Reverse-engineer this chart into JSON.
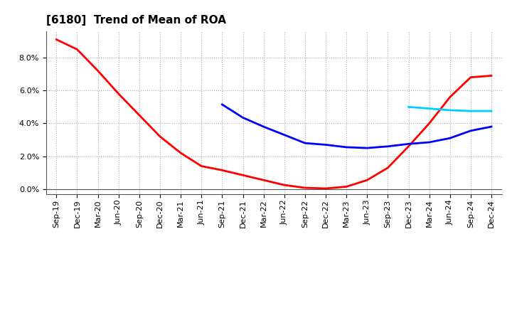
{
  "title": "[6180]  Trend of Mean of ROA",
  "x_labels": [
    "Sep-19",
    "Dec-19",
    "Mar-20",
    "Jun-20",
    "Sep-20",
    "Dec-20",
    "Mar-21",
    "Jun-21",
    "Sep-21",
    "Dec-21",
    "Mar-22",
    "Jun-22",
    "Sep-22",
    "Dec-22",
    "Mar-23",
    "Jun-23",
    "Sep-23",
    "Dec-23",
    "Mar-24",
    "Jun-24",
    "Sep-24",
    "Dec-24"
  ],
  "series_3yr": {
    "color": "#FF0000",
    "data_x": [
      0,
      1,
      2,
      3,
      4,
      5,
      6,
      7,
      8,
      9,
      10,
      11,
      12,
      13,
      14,
      15,
      16,
      17,
      18,
      19,
      20,
      21
    ],
    "data_y": [
      9.1,
      8.5,
      7.2,
      5.8,
      4.5,
      3.2,
      2.2,
      1.4,
      1.15,
      0.85,
      0.55,
      0.25,
      0.08,
      0.04,
      0.15,
      0.55,
      1.3,
      2.6,
      4.0,
      5.6,
      6.8,
      6.9
    ]
  },
  "series_5yr": {
    "color": "#0000FF",
    "data_x": [
      8,
      9,
      10,
      11,
      12,
      13,
      14,
      15,
      16,
      17,
      18,
      19,
      20,
      21
    ],
    "data_y": [
      5.15,
      4.35,
      3.8,
      3.3,
      2.8,
      2.7,
      2.55,
      2.5,
      2.6,
      2.75,
      2.85,
      3.1,
      3.55,
      3.8
    ]
  },
  "series_7yr": {
    "color": "#00CCFF",
    "data_x": [
      17,
      18,
      19,
      20,
      21
    ],
    "data_y": [
      5.0,
      4.9,
      4.8,
      4.75,
      4.75
    ]
  },
  "series_10yr": {
    "color": "#008000",
    "data_x": [],
    "data_y": []
  },
  "ylim": [
    -0.3,
    9.6
  ],
  "yticks": [
    0.0,
    2.0,
    4.0,
    6.0,
    8.0
  ],
  "background_color": "#FFFFFF",
  "grid_color": "#AAAAAA",
  "line_width": 2.0,
  "title_fontsize": 11,
  "tick_fontsize": 8,
  "legend_fontsize": 9
}
